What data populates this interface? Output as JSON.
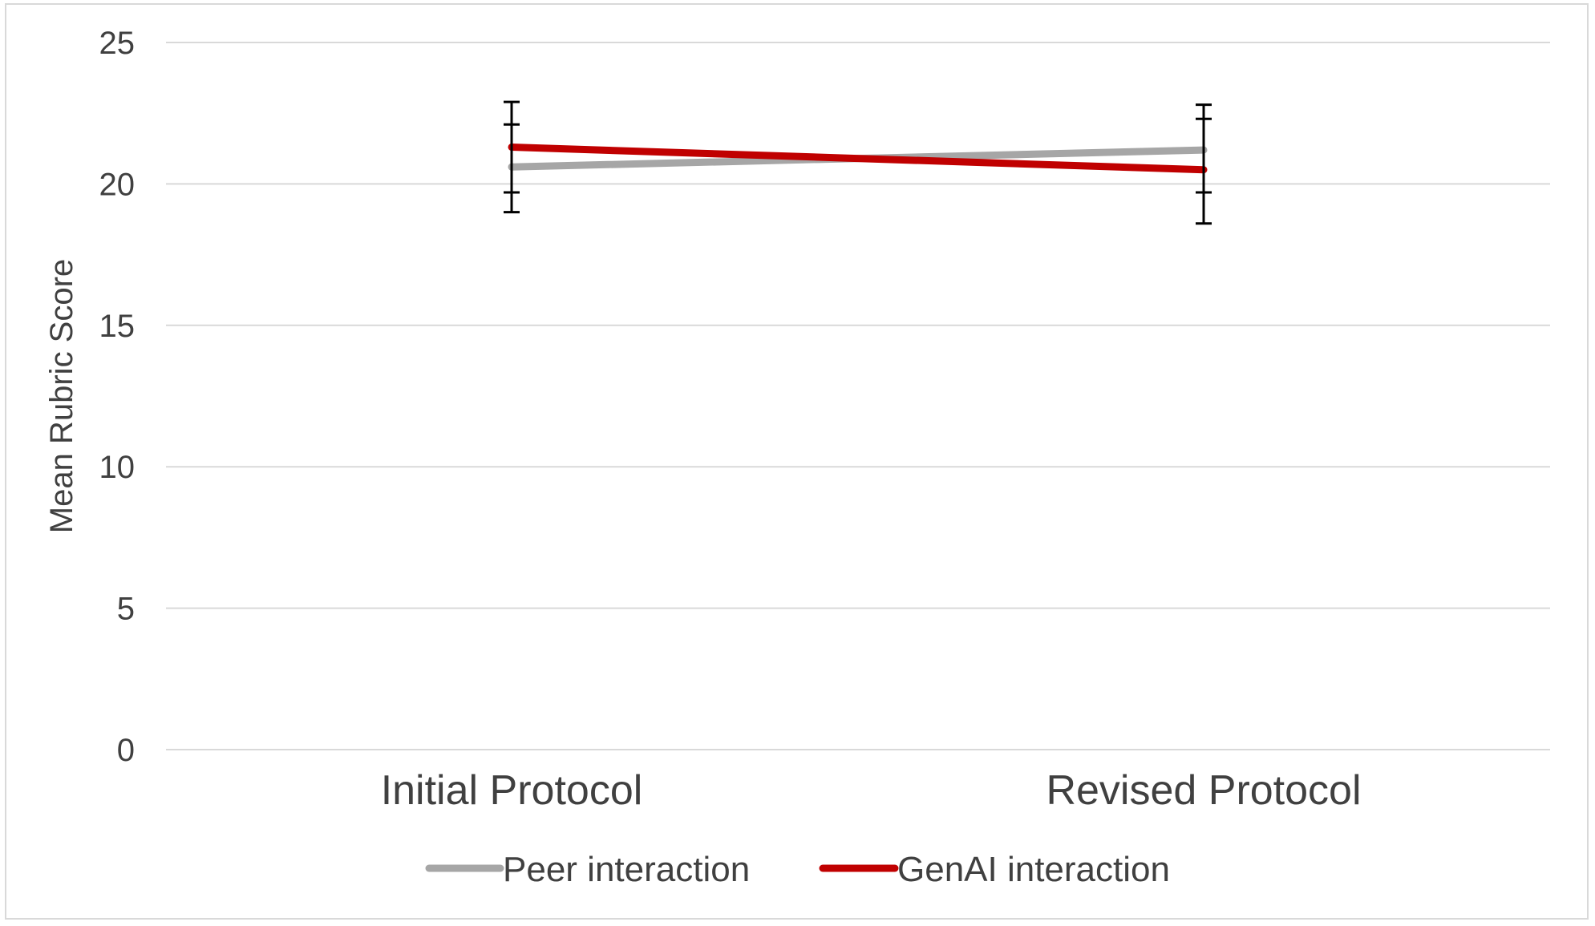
{
  "colors": {
    "peer": "#a6a6a6",
    "genai": "#c00000",
    "error_bar": "#000000",
    "grid": "#d9d9d9",
    "text": "#404040"
  },
  "chart_data": {
    "type": "line",
    "title": "",
    "xlabel": "",
    "ylabel": "Mean Rubric Score",
    "categories": [
      "Initial Protocol",
      "Revised Protocol"
    ],
    "ylim": [
      0,
      25
    ],
    "yticks": [
      0,
      5,
      10,
      15,
      20,
      25
    ],
    "grid": true,
    "legend_position": "bottom",
    "series": [
      {
        "name": "Peer interaction",
        "color": "#a6a6a6",
        "values": [
          20.6,
          21.2
        ],
        "error_low": [
          19.7,
          19.7
        ],
        "error_high": [
          22.1,
          22.3
        ]
      },
      {
        "name": "GenAI interaction",
        "color": "#c00000",
        "values": [
          21.3,
          20.5
        ],
        "error_low": [
          19.0,
          18.6
        ],
        "error_high": [
          22.9,
          22.8
        ]
      }
    ]
  }
}
